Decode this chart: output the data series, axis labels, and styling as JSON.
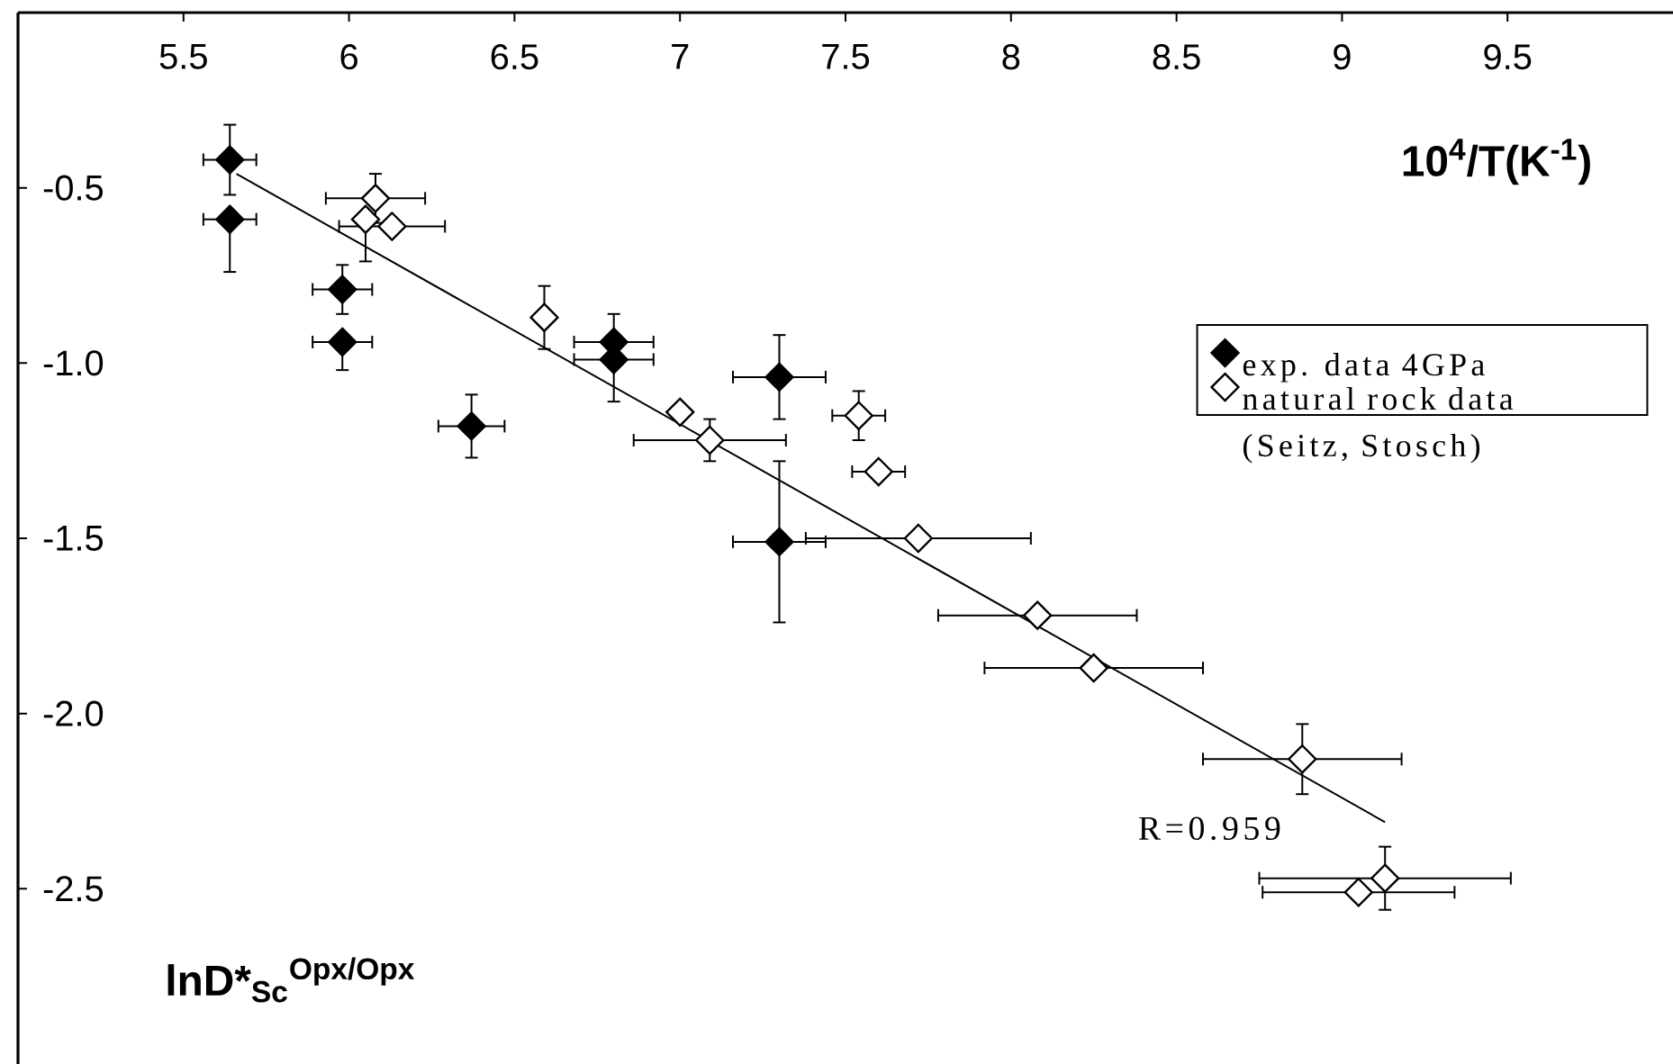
{
  "chart_data": {
    "type": "scatter",
    "xlabel": "10$^{4}$/T(K$^{-1}$)",
    "ylabel": "lnD*$_{Sc}$$^{Opx/Opx}$",
    "xlim": [
      5,
      10
    ],
    "ylim": [
      -3,
      0
    ],
    "xticks": [
      5.5,
      6,
      6.5,
      7,
      7.5,
      8,
      8.5,
      9,
      9.5
    ],
    "yticks": [
      -0.5,
      {
        "value": -1,
        "label": "-1.0"
      },
      -1.5,
      {
        "value": -2,
        "label": "-2.0"
      },
      -2.5
    ],
    "marker": "diamond",
    "legend": "right",
    "annotations": [
      "R=0.959"
    ],
    "series": [
      {
        "name": "exp. data 4GPa",
        "color": "#000000",
        "x": [
          5.64,
          5.64,
          5.98,
          5.98,
          6.37,
          6.8,
          6.8,
          7.3,
          7.3
        ],
        "values": [
          -0.42,
          -0.59,
          -0.79,
          -0.94,
          -1.18,
          -0.94,
          -0.99,
          -1.04,
          -1.51
        ],
        "errors": [
          0.1,
          [
            -0.74,
            -0.59
          ],
          0.07,
          [
            -1.02,
            -0.94
          ],
          0.09,
          [
            -0.94,
            -0.86
          ],
          [
            -1.11,
            -0.99
          ],
          0.12,
          0.23
        ],
        "xerrors": [
          0.08,
          0.08,
          0.09,
          0.09,
          0.1,
          0.12,
          0.12,
          0.14,
          0.14
        ]
      },
      {
        "name": "natural rock data (Seitz, Stosch)",
        "color": "#ffffff",
        "x": [
          6.08,
          6.05,
          6.13,
          6.59,
          7.0,
          7.09,
          7.54,
          7.6,
          7.72,
          8.08,
          8.25,
          8.88,
          9.13,
          9.05
        ],
        "values": [
          -0.53,
          -0.59,
          -0.61,
          -0.87,
          -1.14,
          -1.22,
          -1.15,
          -1.31,
          -1.5,
          -1.72,
          -1.87,
          -2.13,
          -2.47,
          -2.51
        ],
        "errors": [
          0.07,
          [
            -0.71,
            -0.59
          ],
          null,
          0.09,
          null,
          0.06,
          0.07,
          null,
          null,
          null,
          null,
          0.1,
          0.09,
          null
        ],
        "xerrors": [
          0.15,
          null,
          0.16,
          null,
          null,
          0.23,
          0.08,
          0.08,
          0.34,
          0.3,
          0.33,
          0.3,
          0.38,
          0.29
        ]
      },
      {
        "type": "line",
        "color": "#000000",
        "marker": "none",
        "x": [
          5.66,
          9.13
        ],
        "values": [
          -0.46,
          -2.31
        ]
      }
    ]
  }
}
